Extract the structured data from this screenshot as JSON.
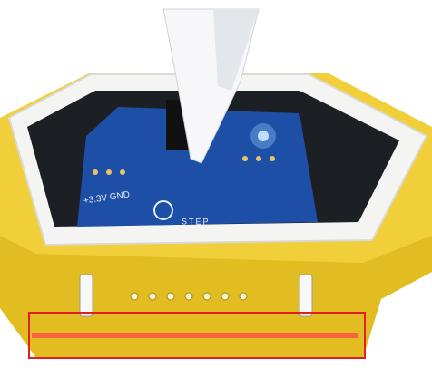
{
  "photo": {
    "board_labels": [
      "+3.3V GND",
      "STEP"
    ]
  }
}
